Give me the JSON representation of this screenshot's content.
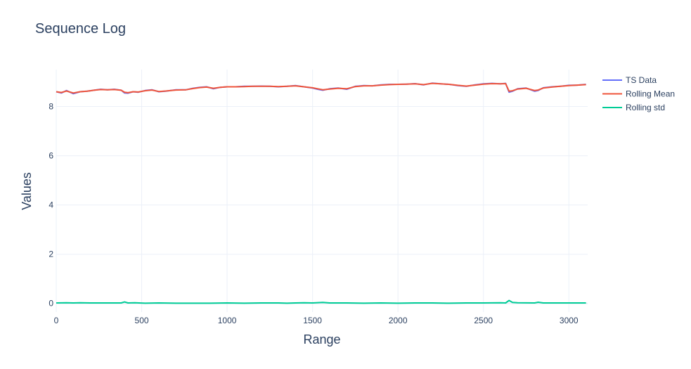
{
  "chart_data": {
    "type": "line",
    "title": "Sequence Log",
    "xlabel": "Range",
    "ylabel": "Values",
    "xlim": [
      0,
      3110
    ],
    "ylim": [
      -0.35,
      9.5
    ],
    "xticks": [
      0,
      500,
      1000,
      1500,
      2000,
      2500,
      3000
    ],
    "yticks": [
      0,
      2,
      4,
      6,
      8
    ],
    "grid": true,
    "legend_position": "top-right",
    "colors": {
      "ts_data": "#636efa",
      "rolling_mean": "#ef553b",
      "rolling_std": "#00cc96",
      "grid": "#ebf0f8",
      "zero_line": "#ebf0f8",
      "text": "#2a3f5f"
    },
    "series": [
      {
        "name": "TS Data",
        "x": [
          0,
          30,
          60,
          100,
          140,
          180,
          220,
          260,
          300,
          340,
          380,
          400,
          420,
          450,
          480,
          520,
          560,
          600,
          640,
          700,
          760,
          800,
          840,
          880,
          920,
          960,
          1000,
          1050,
          1100,
          1150,
          1200,
          1250,
          1300,
          1350,
          1400,
          1450,
          1500,
          1530,
          1560,
          1600,
          1650,
          1700,
          1750,
          1800,
          1850,
          1900,
          1950,
          2000,
          2050,
          2100,
          2150,
          2200,
          2250,
          2300,
          2350,
          2400,
          2450,
          2500,
          2550,
          2600,
          2630,
          2650,
          2670,
          2700,
          2750,
          2800,
          2820,
          2850,
          2900,
          2950,
          3000,
          3050,
          3100
        ],
        "y": [
          8.6,
          8.55,
          8.65,
          8.52,
          8.6,
          8.62,
          8.66,
          8.7,
          8.68,
          8.7,
          8.66,
          8.55,
          8.54,
          8.6,
          8.58,
          8.65,
          8.68,
          8.6,
          8.62,
          8.68,
          8.68,
          8.74,
          8.78,
          8.8,
          8.72,
          8.78,
          8.8,
          8.8,
          8.82,
          8.82,
          8.83,
          8.82,
          8.8,
          8.82,
          8.85,
          8.8,
          8.75,
          8.7,
          8.66,
          8.72,
          8.75,
          8.7,
          8.82,
          8.85,
          8.84,
          8.88,
          8.9,
          8.9,
          8.91,
          8.93,
          8.88,
          8.95,
          8.92,
          8.9,
          8.85,
          8.82,
          8.88,
          8.92,
          8.94,
          8.92,
          8.94,
          8.58,
          8.62,
          8.72,
          8.75,
          8.62,
          8.65,
          8.76,
          8.8,
          8.82,
          8.86,
          8.87,
          8.9
        ]
      },
      {
        "name": "Rolling Mean",
        "x": [
          0,
          30,
          60,
          100,
          140,
          180,
          220,
          260,
          300,
          340,
          380,
          400,
          420,
          450,
          480,
          520,
          560,
          600,
          640,
          700,
          760,
          800,
          840,
          880,
          920,
          960,
          1000,
          1050,
          1100,
          1150,
          1200,
          1250,
          1300,
          1350,
          1400,
          1450,
          1500,
          1530,
          1560,
          1600,
          1650,
          1700,
          1750,
          1800,
          1850,
          1900,
          1950,
          2000,
          2050,
          2100,
          2150,
          2200,
          2250,
          2300,
          2350,
          2400,
          2450,
          2500,
          2550,
          2600,
          2630,
          2650,
          2670,
          2700,
          2750,
          2800,
          2820,
          2850,
          2900,
          2950,
          3000,
          3050,
          3100
        ],
        "y": [
          8.6,
          8.57,
          8.63,
          8.55,
          8.6,
          8.62,
          8.66,
          8.69,
          8.68,
          8.69,
          8.66,
          8.58,
          8.56,
          8.6,
          8.59,
          8.64,
          8.67,
          8.61,
          8.63,
          8.67,
          8.68,
          8.73,
          8.77,
          8.79,
          8.74,
          8.78,
          8.8,
          8.8,
          8.81,
          8.82,
          8.82,
          8.82,
          8.81,
          8.82,
          8.84,
          8.8,
          8.76,
          8.72,
          8.68,
          8.71,
          8.74,
          8.72,
          8.81,
          8.84,
          8.84,
          8.87,
          8.89,
          8.9,
          8.91,
          8.92,
          8.89,
          8.94,
          8.92,
          8.9,
          8.86,
          8.83,
          8.87,
          8.91,
          8.93,
          8.92,
          8.93,
          8.62,
          8.64,
          8.71,
          8.74,
          8.65,
          8.67,
          8.75,
          8.79,
          8.82,
          8.85,
          8.87,
          8.89
        ]
      },
      {
        "name": "Rolling std",
        "x": [
          0,
          60,
          100,
          140,
          200,
          300,
          380,
          400,
          420,
          460,
          520,
          600,
          700,
          800,
          900,
          1000,
          1100,
          1200,
          1300,
          1350,
          1400,
          1450,
          1500,
          1560,
          1600,
          1700,
          1800,
          1900,
          2000,
          2100,
          2200,
          2300,
          2400,
          2500,
          2600,
          2630,
          2650,
          2670,
          2700,
          2800,
          2820,
          2850,
          2900,
          3000,
          3100
        ],
        "y": [
          0.02,
          0.03,
          0.02,
          0.03,
          0.02,
          0.02,
          0.02,
          0.06,
          0.02,
          0.03,
          0.01,
          0.02,
          0.01,
          0.01,
          0.01,
          0.02,
          0.01,
          0.02,
          0.02,
          0.01,
          0.02,
          0.03,
          0.02,
          0.04,
          0.02,
          0.02,
          0.01,
          0.02,
          0.01,
          0.02,
          0.02,
          0.01,
          0.02,
          0.02,
          0.03,
          0.02,
          0.12,
          0.04,
          0.03,
          0.02,
          0.05,
          0.02,
          0.02,
          0.02,
          0.02
        ]
      }
    ]
  }
}
